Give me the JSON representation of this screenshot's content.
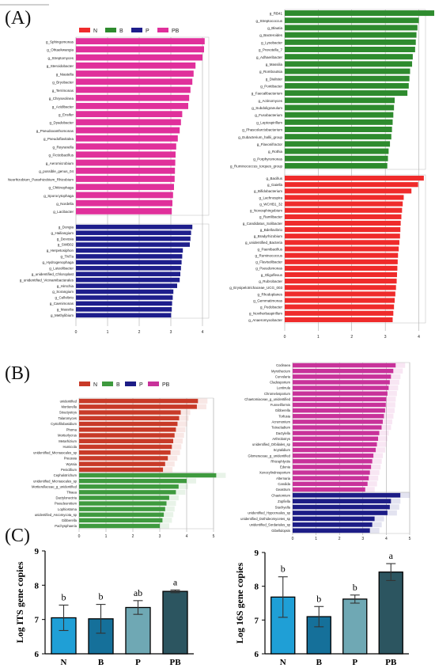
{
  "colors": {
    "N": "#ef2b2b",
    "B": "#2e8b2e",
    "P": "#1e1e8c",
    "PB": "#e0309b",
    "N_B": "#c83a28",
    "B_B": "#3e9a3e",
    "P_B": "#1c1c86",
    "PB_B": "#c8329a",
    "bar_N": "#1f9fd6",
    "bar_B": "#15709a",
    "bar_P": "#6fa8b4",
    "bar_PB": "#2c5560"
  },
  "panels": {
    "A": "(A)",
    "B": "(B)",
    "C": "(C)"
  },
  "legend": [
    {
      "key": "N",
      "label": "N"
    },
    {
      "key": "B",
      "label": "B"
    },
    {
      "key": "P",
      "label": "P"
    },
    {
      "key": "PB",
      "label": "PB"
    }
  ],
  "chart_data": [
    {
      "type": "bar",
      "orientation": "horizontal",
      "panel": "A-left",
      "xlim": [
        0,
        4.2
      ],
      "xticks": [
        0,
        1,
        2,
        3,
        4
      ],
      "groups": [
        {
          "group": "PB",
          "categories": [
            "g_Sphingomonas",
            "g_Ohtaekwangia",
            "g_Streptomyces",
            "g_Steroidobacter",
            "g_Niastella",
            "g_Bryobacter",
            "g_Terrimonas",
            "g_Chryseolinea",
            "g_Acidibacter",
            "g_Ensifer",
            "g_Dyadobacter",
            "g_Pseudoxanthomonas",
            "g_Pseudoflavitalea",
            "g_Reyranella",
            "g_Ficticibacillus",
            "g_Aeromicrobium",
            "g_possible_genus_04",
            "Neorhizobium_Pararhizobium_Rhizobium",
            "g_Chitinophaga",
            "g_Sporocytophaga",
            "g_Nordella",
            "g_Lacibacter"
          ],
          "values": [
            4.07,
            4.05,
            4.0,
            3.78,
            3.72,
            3.68,
            3.62,
            3.58,
            3.55,
            3.36,
            3.32,
            3.28,
            3.22,
            3.17,
            3.15,
            3.14,
            3.13,
            3.12,
            3.1,
            3.07,
            3.05,
            3.03
          ]
        },
        {
          "group": "P",
          "categories": [
            "g_Dongia",
            "g_Hailiangium",
            "g_Devosia",
            "g_SWB02",
            "g_Herpetosiphon",
            "g_TM7a",
            "g_Hydrogenophaga",
            "g_Luteolibacter",
            "g_unidentified_Chloroplast",
            "g_unidentified_Vicinamibacterales",
            "g_Hirschia",
            "g_Sorangium",
            "g_Cellvibrio",
            "g_Caenimonas",
            "g_Massilia",
            "g_Methylibium"
          ],
          "values": [
            3.68,
            3.64,
            3.62,
            3.6,
            3.38,
            3.36,
            3.34,
            3.32,
            3.3,
            3.28,
            3.2,
            3.08,
            3.06,
            3.04,
            3.03,
            3.01
          ]
        }
      ]
    },
    {
      "type": "bar",
      "orientation": "horizontal",
      "panel": "A-right",
      "xlim": [
        0,
        4.2
      ],
      "xticks": [
        0,
        1,
        2,
        3,
        4
      ],
      "groups": [
        {
          "group": "B",
          "categories": [
            "g_RB41",
            "g_Streptococcus",
            "g_Blautia",
            "g_Bacteroides",
            "g_Lysobacter",
            "g_Prevotella_7",
            "g_Adhaeribacter",
            "g_Massilia",
            "g_Romboutsia",
            "g_Dialister",
            "g_Pontibacter",
            "g_Faecalibacterium",
            "g_Actinomyces",
            "g_Subdoligranulum",
            "g_Fusobacterium",
            "g_Leptospirillum",
            "g_Phascolarctobacterium",
            "g_Eubacterium_hallii_group",
            "g_Flavonifractor",
            "g_Rothia",
            "g_Porphyromonas",
            "g_Ruminococcus_torques_group"
          ],
          "values": [
            4.46,
            4.0,
            3.96,
            3.93,
            3.91,
            3.89,
            3.82,
            3.8,
            3.74,
            3.72,
            3.7,
            3.66,
            3.28,
            3.26,
            3.24,
            3.22,
            3.2,
            3.18,
            3.14,
            3.1,
            3.08,
            3.06
          ]
        },
        {
          "group": "N",
          "categories": [
            "g_Bacillus",
            "g_Gaiella",
            "g_Bifidobacterium",
            "g_Lachnospira",
            "g_WCHB1_32",
            "g_Novosphingobium",
            "g_Ramlibacter",
            "g_Candidatus_Solibacter",
            "g_Bdellovibrio",
            "g_Bradyrhizobium",
            "g_unidentified_Bacteria",
            "g_Paenibacillus",
            "g_Ruminococcus",
            "g_Flavisolibacter",
            "g_Pseudomonas",
            "g_Oligoflexus",
            "g_Rubrobacter",
            "g_Erysipelotrichaceae_UCG_003",
            "g_Rhodoplanes",
            "g_Gemmatimonas",
            "g_Pedobacter",
            "g_Noviherbaspirillum",
            "g_Anaeromyxobacter"
          ],
          "values": [
            4.15,
            3.98,
            3.78,
            3.55,
            3.52,
            3.5,
            3.48,
            3.46,
            3.45,
            3.44,
            3.42,
            3.4,
            3.38,
            3.37,
            3.36,
            3.35,
            3.34,
            3.32,
            3.3,
            3.28,
            3.26,
            3.24,
            3.22
          ]
        }
      ]
    },
    {
      "type": "bar",
      "orientation": "horizontal",
      "panel": "B-left",
      "xlim": [
        0,
        5
      ],
      "xticks": [
        0,
        1,
        2,
        3,
        4,
        5
      ],
      "groups": [
        {
          "group": "N",
          "categories": [
            "unidentified",
            "Mortierella",
            "Stractyotrys",
            "Talaromyces",
            "Cystofilobasidium",
            "Phoma",
            "Mortierlycrus",
            "Metarhizium",
            "Humicola",
            "unidentified_Microascales_sp",
            "Preussia",
            "Wyssia",
            "Penicillium"
          ],
          "values": [
            4.42,
            4.38,
            3.78,
            3.72,
            3.66,
            3.6,
            3.55,
            3.5,
            3.45,
            3.4,
            3.3,
            3.2,
            3.12
          ]
        },
        {
          "group": "B",
          "categories": [
            "Cephalotrichum",
            "unidentified_Microascales_sp",
            "Mortierellaceae_g_unidentified",
            "Thiaea",
            "Dactylonectria",
            "Pseudeurotium",
            "Lophiostoma",
            "unidentified_Ascomycota_sp",
            "Gibberella",
            "Pachysphaeria"
          ],
          "values": [
            5.1,
            4.0,
            3.7,
            3.6,
            3.35,
            3.25,
            3.2,
            3.15,
            3.1,
            3.0
          ]
        }
      ]
    },
    {
      "type": "bar",
      "orientation": "horizontal",
      "panel": "B-right",
      "xlim": [
        0,
        5
      ],
      "xticks": [
        0,
        1,
        2,
        3,
        4,
        5
      ],
      "groups": [
        {
          "group": "PB",
          "categories": [
            "Codinaea",
            "Myrothecium",
            "Curvularia",
            "Cladosporium",
            "Lentinula",
            "Chromelosporium",
            "Chaetomiaceae_g_unidentified",
            "Funneliformis",
            "Gibberella",
            "Torfusia",
            "Acremonium",
            "Tetracladium",
            "Dactylella",
            "Arthrobotrys",
            "unidentified_Orbiliales_sp",
            "Scytalidium",
            "Glomeraceae_g_unidentified",
            "Rhizophlyctis",
            "Edenia",
            "Xenocylindrosporium",
            "Alternaria",
            "Candida",
            "Geastrum"
          ],
          "values": [
            4.4,
            4.3,
            4.2,
            4.15,
            4.1,
            4.05,
            4.0,
            3.98,
            3.95,
            3.9,
            3.85,
            3.8,
            3.7,
            3.65,
            3.6,
            3.55,
            3.45,
            3.4,
            3.35,
            3.3,
            3.25,
            3.2,
            3.1
          ]
        },
        {
          "group": "P",
          "categories": [
            "Chaetomium",
            "Zopfiella",
            "Stachyella",
            "unidentified_Hypocreales_sp",
            "unidentified_Dothideomycetes_sp",
            "unidentified_Sordariales_sp",
            "Gibellulopsis"
          ],
          "values": [
            4.6,
            4.2,
            4.15,
            4.05,
            3.5,
            3.4,
            3.3
          ]
        }
      ]
    },
    {
      "type": "bar",
      "panel": "C-left",
      "categories": [
        "N",
        "B",
        "P",
        "PB"
      ],
      "values": [
        7.05,
        7.02,
        7.35,
        7.82
      ],
      "errors": [
        0.37,
        0.42,
        0.2,
        0.04
      ],
      "letters": [
        "b",
        "b",
        "ab",
        "a"
      ],
      "ylabel": "Log ITS gene copies",
      "ylim": [
        6,
        9
      ],
      "yticks": [
        6,
        7,
        8,
        9
      ]
    },
    {
      "type": "bar",
      "panel": "C-right",
      "categories": [
        "N",
        "B",
        "P",
        "PB"
      ],
      "values": [
        7.68,
        7.1,
        7.62,
        8.42
      ],
      "errors": [
        0.6,
        0.3,
        0.12,
        0.25
      ],
      "letters": [
        "b",
        "b",
        "b",
        "a"
      ],
      "ylabel": "Log 16S gene copies",
      "ylim": [
        6,
        9
      ],
      "yticks": [
        6,
        7,
        8,
        9
      ]
    }
  ]
}
